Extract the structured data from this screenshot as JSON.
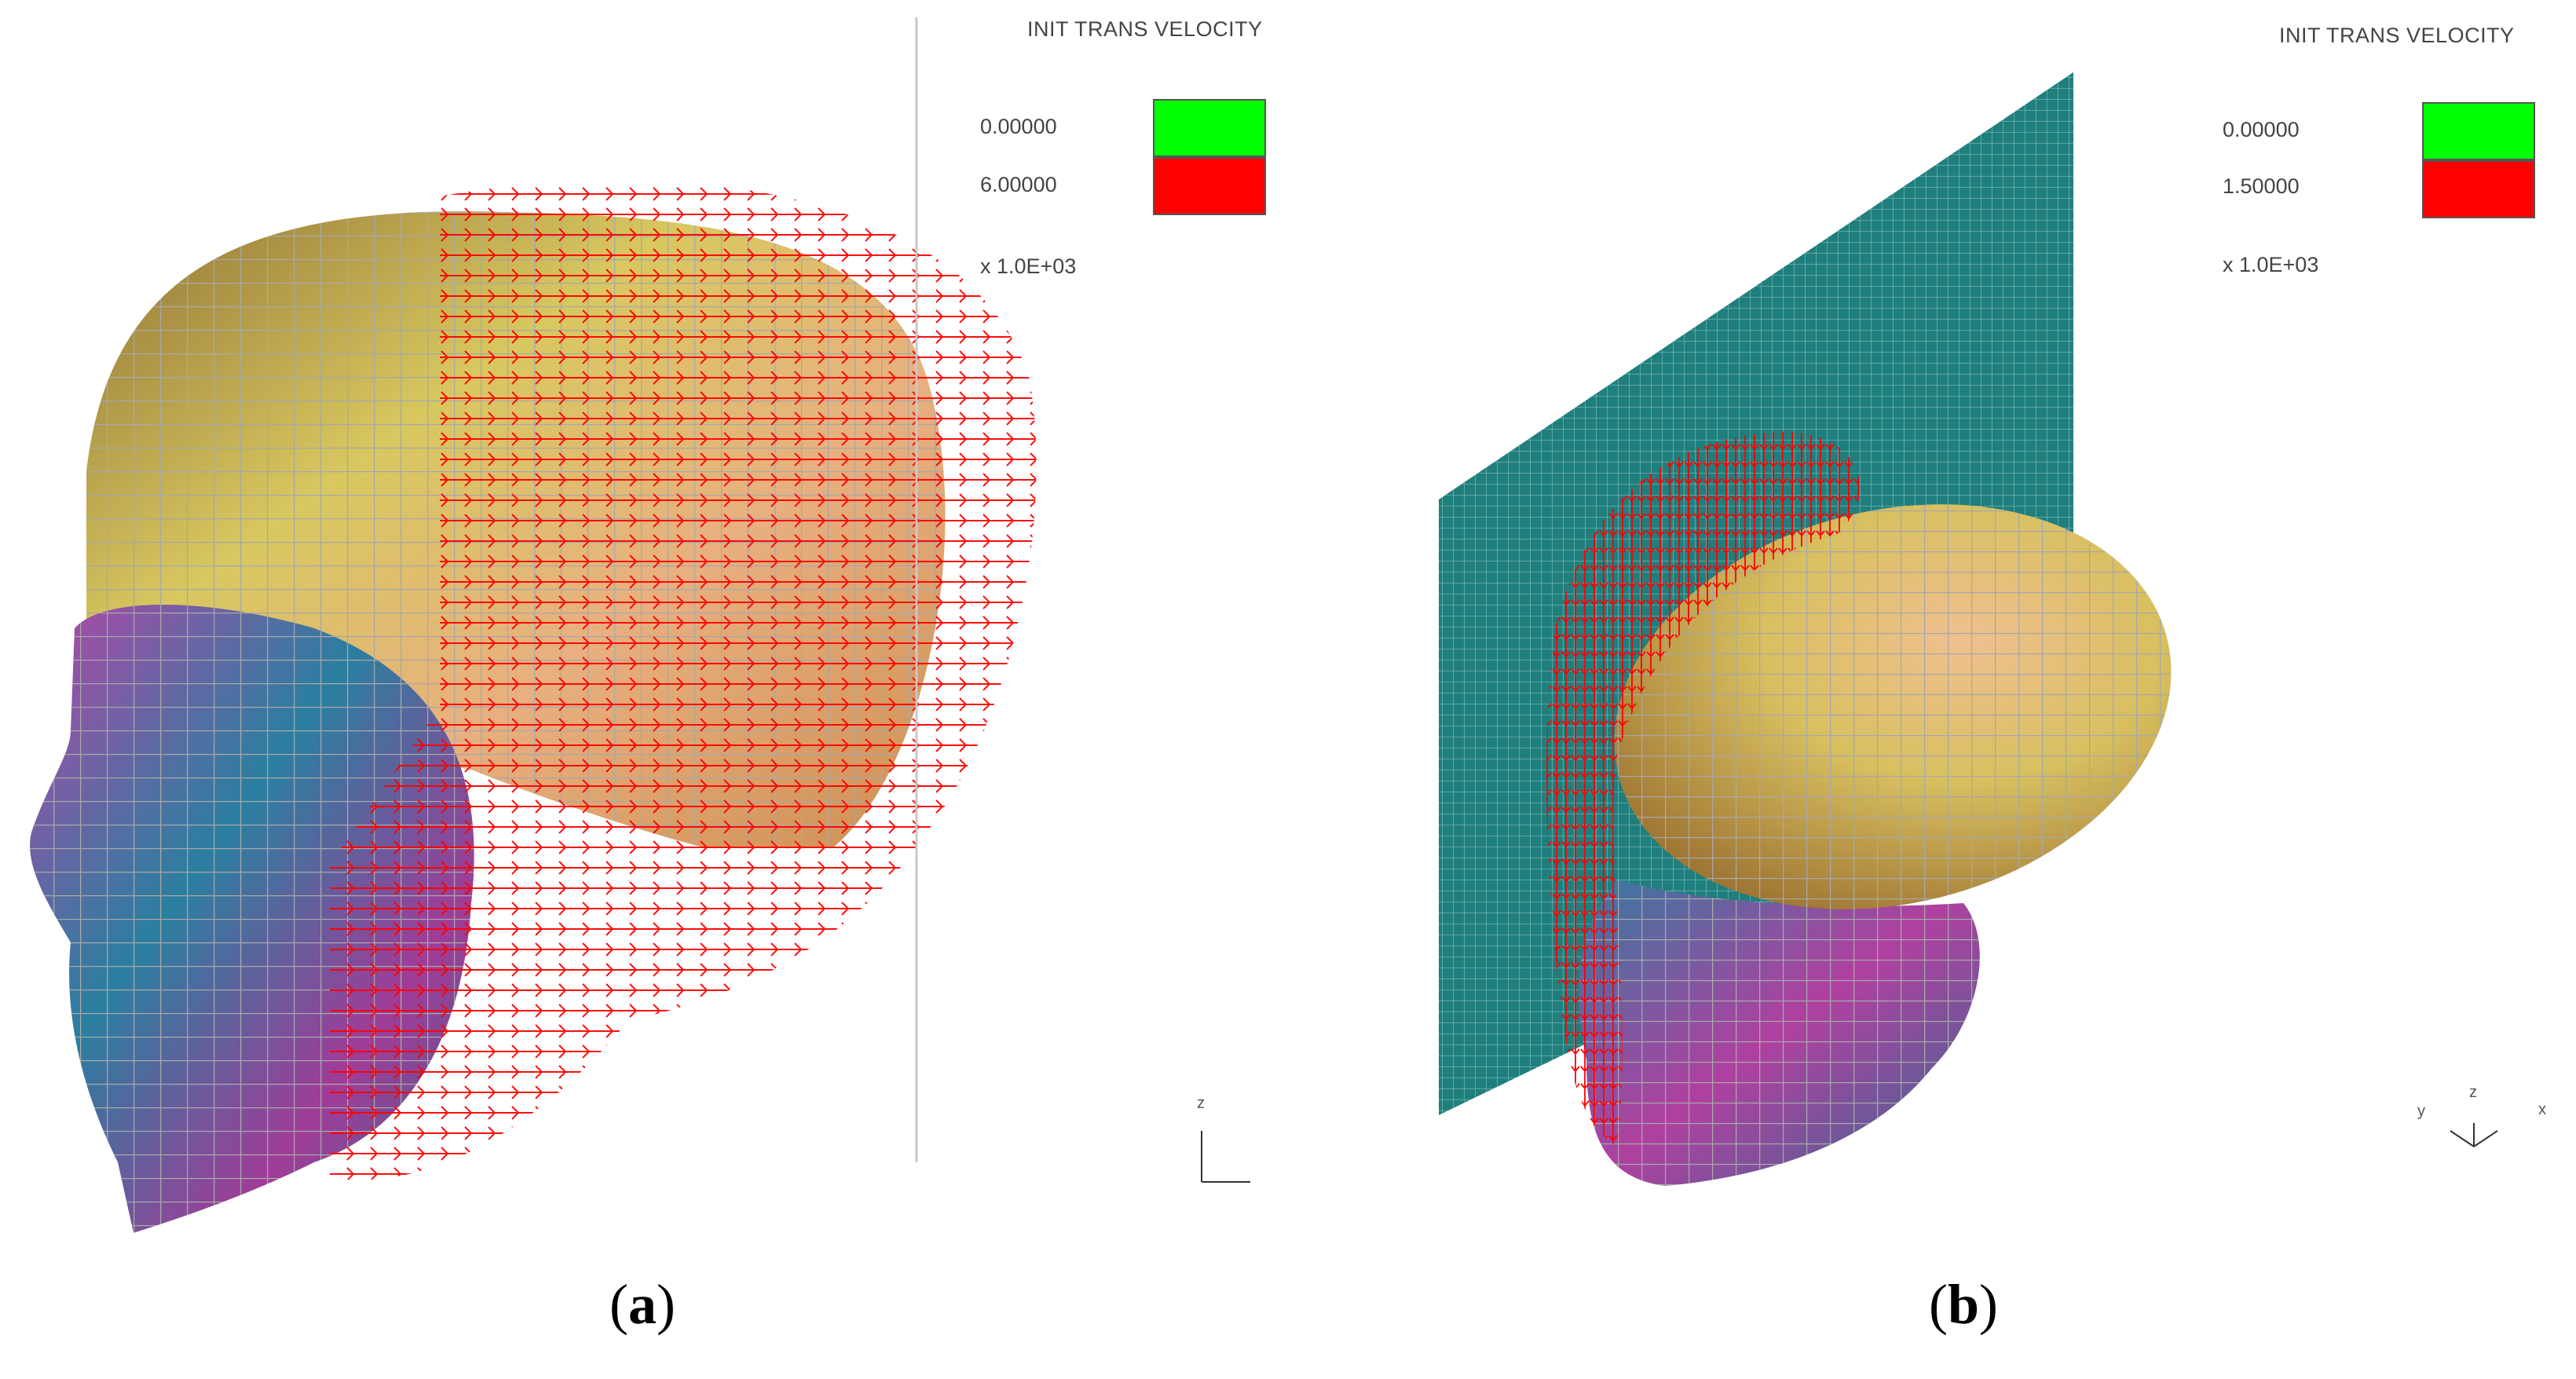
{
  "colors": {
    "min_color": "#00ff00",
    "max_color": "#ff0000",
    "vector_color": "#ff0000",
    "wall_color": "#1f7f7d"
  },
  "panels": [
    {
      "caption_label": "a",
      "legend": {
        "title": "INIT TRANS VELOCITY",
        "min_value": "0.00000",
        "max_value": "6.00000",
        "scale": "x 1.0E+03"
      },
      "triad": {
        "axes": [
          "z"
        ]
      }
    },
    {
      "caption_label": "b",
      "legend": {
        "title": "INIT TRANS VELOCITY",
        "min_value": "0.00000",
        "max_value": "1.50000",
        "scale": "x 1.0E+03"
      },
      "triad": {
        "axes": [
          "z",
          "y",
          "x"
        ]
      }
    }
  ]
}
